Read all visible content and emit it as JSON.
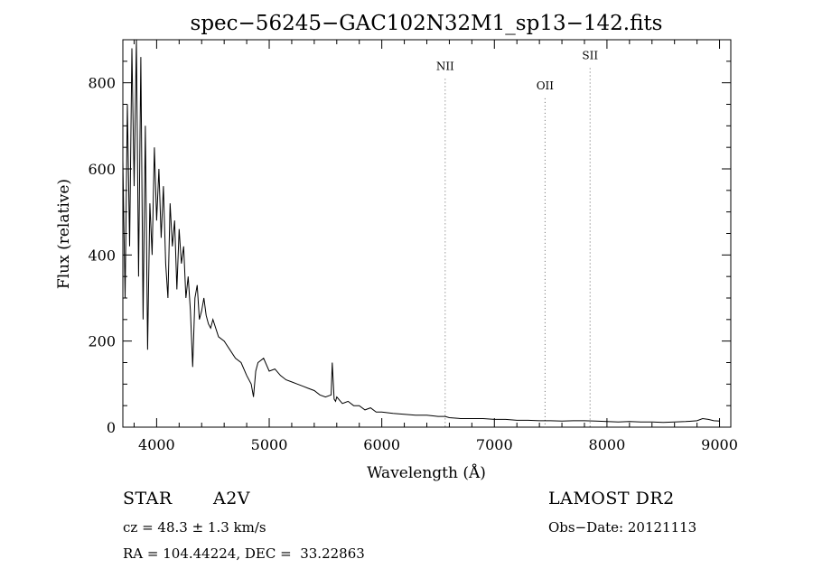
{
  "chart_data": {
    "type": "line",
    "title": "spec−56245−GAC102N32M1_sp13−142.fits",
    "xlabel": "Wavelength (Å)",
    "ylabel": "Flux (relative)",
    "xlim": [
      3700,
      9100
    ],
    "ylim": [
      0,
      900
    ],
    "xticks": [
      4000,
      5000,
      6000,
      7000,
      8000,
      9000
    ],
    "yticks": [
      0,
      200,
      400,
      600,
      800
    ],
    "grid": false,
    "spectrum": {
      "x": [
        3700,
        3720,
        3740,
        3760,
        3780,
        3800,
        3820,
        3840,
        3860,
        3880,
        3900,
        3920,
        3940,
        3960,
        3980,
        4000,
        4020,
        4040,
        4060,
        4080,
        4100,
        4120,
        4140,
        4160,
        4180,
        4200,
        4220,
        4240,
        4260,
        4280,
        4300,
        4320,
        4340,
        4360,
        4380,
        4400,
        4420,
        4440,
        4460,
        4480,
        4500,
        4550,
        4600,
        4650,
        4700,
        4750,
        4800,
        4840,
        4860,
        4880,
        4900,
        4950,
        5000,
        5050,
        5100,
        5150,
        5200,
        5250,
        5300,
        5350,
        5400,
        5450,
        5500,
        5550,
        5560,
        5577,
        5590,
        5600,
        5650,
        5700,
        5750,
        5800,
        5850,
        5900,
        5950,
        6000,
        6100,
        6200,
        6300,
        6400,
        6500,
        6563,
        6600,
        6700,
        6800,
        6900,
        7000,
        7100,
        7200,
        7300,
        7400,
        7500,
        7600,
        7700,
        7800,
        7900,
        8000,
        8100,
        8200,
        8300,
        8400,
        8500,
        8600,
        8700,
        8800,
        8850,
        8900,
        8950,
        9000
      ],
      "y": [
        620,
        300,
        750,
        420,
        880,
        560,
        900,
        350,
        860,
        250,
        700,
        180,
        520,
        400,
        650,
        480,
        600,
        440,
        560,
        380,
        300,
        520,
        420,
        480,
        320,
        460,
        380,
        420,
        300,
        350,
        270,
        140,
        300,
        330,
        250,
        270,
        300,
        260,
        240,
        230,
        250,
        210,
        200,
        180,
        160,
        150,
        120,
        100,
        70,
        130,
        150,
        160,
        130,
        135,
        120,
        110,
        105,
        100,
        95,
        90,
        85,
        75,
        70,
        75,
        150,
        65,
        60,
        70,
        55,
        60,
        50,
        50,
        40,
        45,
        35,
        35,
        32,
        30,
        28,
        28,
        25,
        25,
        22,
        20,
        20,
        20,
        18,
        18,
        16,
        16,
        15,
        15,
        14,
        15,
        15,
        14,
        13,
        12,
        13,
        12,
        12,
        11,
        12,
        13,
        15,
        20,
        18,
        15,
        14
      ]
    },
    "annotations": [
      {
        "label": "NII",
        "x": 6563,
        "y": 830
      },
      {
        "label": "OII",
        "x": 7450,
        "y": 785
      },
      {
        "label": "SII",
        "x": 7850,
        "y": 855
      }
    ]
  },
  "info": {
    "class": "STAR",
    "subclass": "A2V",
    "survey": "LAMOST DR2",
    "cz": "cz = 48.3 ± 1.3 km/s",
    "obs_date": "Obs−Date: 20121113",
    "coords": "RA = 104.44224, DEC =  33.22863"
  }
}
